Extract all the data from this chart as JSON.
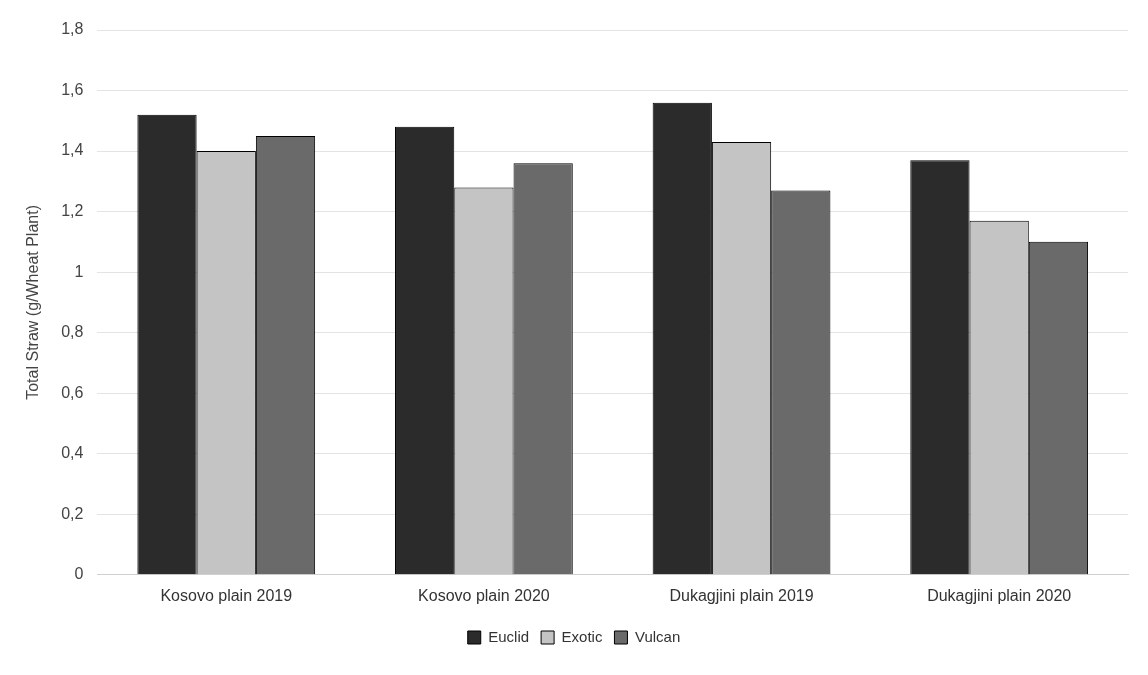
{
  "chart_data": {
    "type": "bar",
    "ylabel": "Total Straw (g/Wheat Plant)",
    "categories": [
      "Kosovo plain 2019",
      "Kosovo plain 2020",
      "Dukagjini plain 2019",
      "Dukagjini plain 2020"
    ],
    "series": [
      {
        "name": "Euclid",
        "color": "#2b2b2b",
        "values": [
          1.52,
          1.48,
          1.56,
          1.37
        ]
      },
      {
        "name": "Exotic",
        "color": "#c4c4c4",
        "values": [
          1.4,
          1.28,
          1.43,
          1.17
        ]
      },
      {
        "name": "Vulcan",
        "color": "#6a6a6a",
        "values": [
          1.45,
          1.36,
          1.27,
          1.1
        ]
      }
    ],
    "ylim": [
      0,
      1.8
    ],
    "yticks": [
      0,
      {
        "value": 0.2,
        "label": "0,2"
      },
      {
        "value": 0.4,
        "label": "0,4"
      },
      {
        "value": 0.6,
        "label": "0,6"
      },
      {
        "value": 0.8,
        "label": "0,8"
      },
      1,
      {
        "value": 1.2,
        "label": "1,2"
      },
      {
        "value": 1.4,
        "label": "1,4"
      },
      {
        "value": 1.6,
        "label": "1,6"
      },
      {
        "value": 1.8,
        "label": "1,8"
      }
    ],
    "grid": "y",
    "legend": "bottom"
  }
}
